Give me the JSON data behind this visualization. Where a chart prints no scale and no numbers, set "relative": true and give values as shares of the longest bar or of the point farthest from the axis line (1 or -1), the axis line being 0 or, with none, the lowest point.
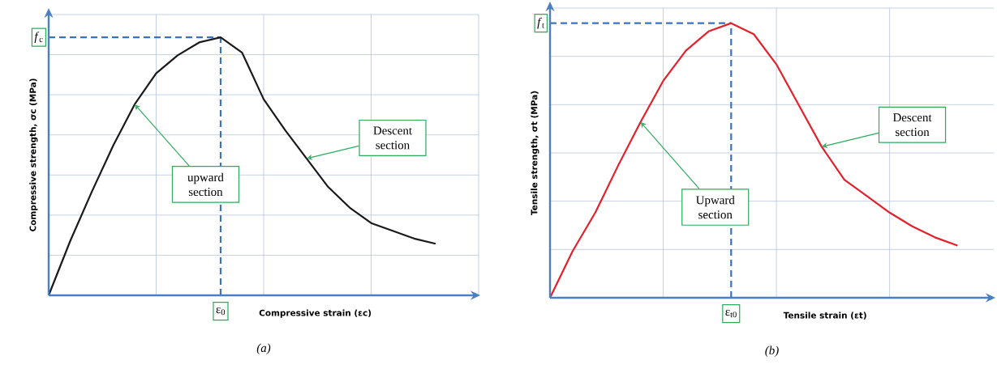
{
  "chart_data": [
    {
      "type": "line",
      "title": "(a)",
      "xlabel": "Compressive strain (εc)",
      "ylabel": "Compressive strength, σc (MPa)",
      "relative": true,
      "grid": true,
      "line_style": "solid",
      "categories": [
        null,
        null,
        null,
        null,
        null,
        null,
        null,
        null,
        null,
        null,
        null,
        null,
        null,
        null,
        null,
        null,
        null,
        null,
        null
      ],
      "series": [
        {
          "color": "#1a1a1a",
          "values": [
            0,
            0.21,
            0.4,
            0.58,
            0.74,
            0.86,
            0.93,
            0.98,
            1.0,
            0.94,
            0.76,
            0.64,
            0.53,
            0.42,
            0.34,
            0.28,
            0.25,
            0.22,
            0.2
          ]
        }
      ],
      "ref_lines": [
        {
          "axis": "y",
          "value": 1.0,
          "label": "*f*$_{c}$",
          "color": "#3d72b8",
          "line_style": "dashed"
        },
        {
          "axis": "x",
          "label": "ε$_{0}$",
          "color": "#3d72b8",
          "line_style": "dashed"
        }
      ],
      "annotations": [
        "upward section",
        "Descent section"
      ]
    },
    {
      "type": "line",
      "title": "(b)",
      "xlabel": "Tensile strain (εt)",
      "ylabel": "Tensile strength, σt (MPa)",
      "relative": true,
      "grid": true,
      "line_style": "solid",
      "categories": [
        null,
        null,
        null,
        null,
        null,
        null,
        null,
        null,
        null,
        null,
        null,
        null,
        null,
        null,
        null,
        null,
        null,
        null,
        null
      ],
      "series": [
        {
          "color": "#e5202b",
          "values": [
            0,
            0.17,
            0.31,
            0.48,
            0.64,
            0.79,
            0.9,
            0.97,
            1.0,
            0.96,
            0.85,
            0.7,
            0.55,
            0.43,
            0.37,
            0.31,
            0.26,
            0.22,
            0.19
          ]
        }
      ],
      "ref_lines": [
        {
          "axis": "y",
          "value": 1.0,
          "label": "*f*$_{t}$",
          "color": "#3d72b8",
          "line_style": "dashed"
        },
        {
          "axis": "x",
          "label": "ε$_{t0}$",
          "color": "#3d72b8",
          "line_style": "dashed"
        }
      ],
      "annotations": [
        "Upward section",
        "Descent section"
      ]
    }
  ]
}
